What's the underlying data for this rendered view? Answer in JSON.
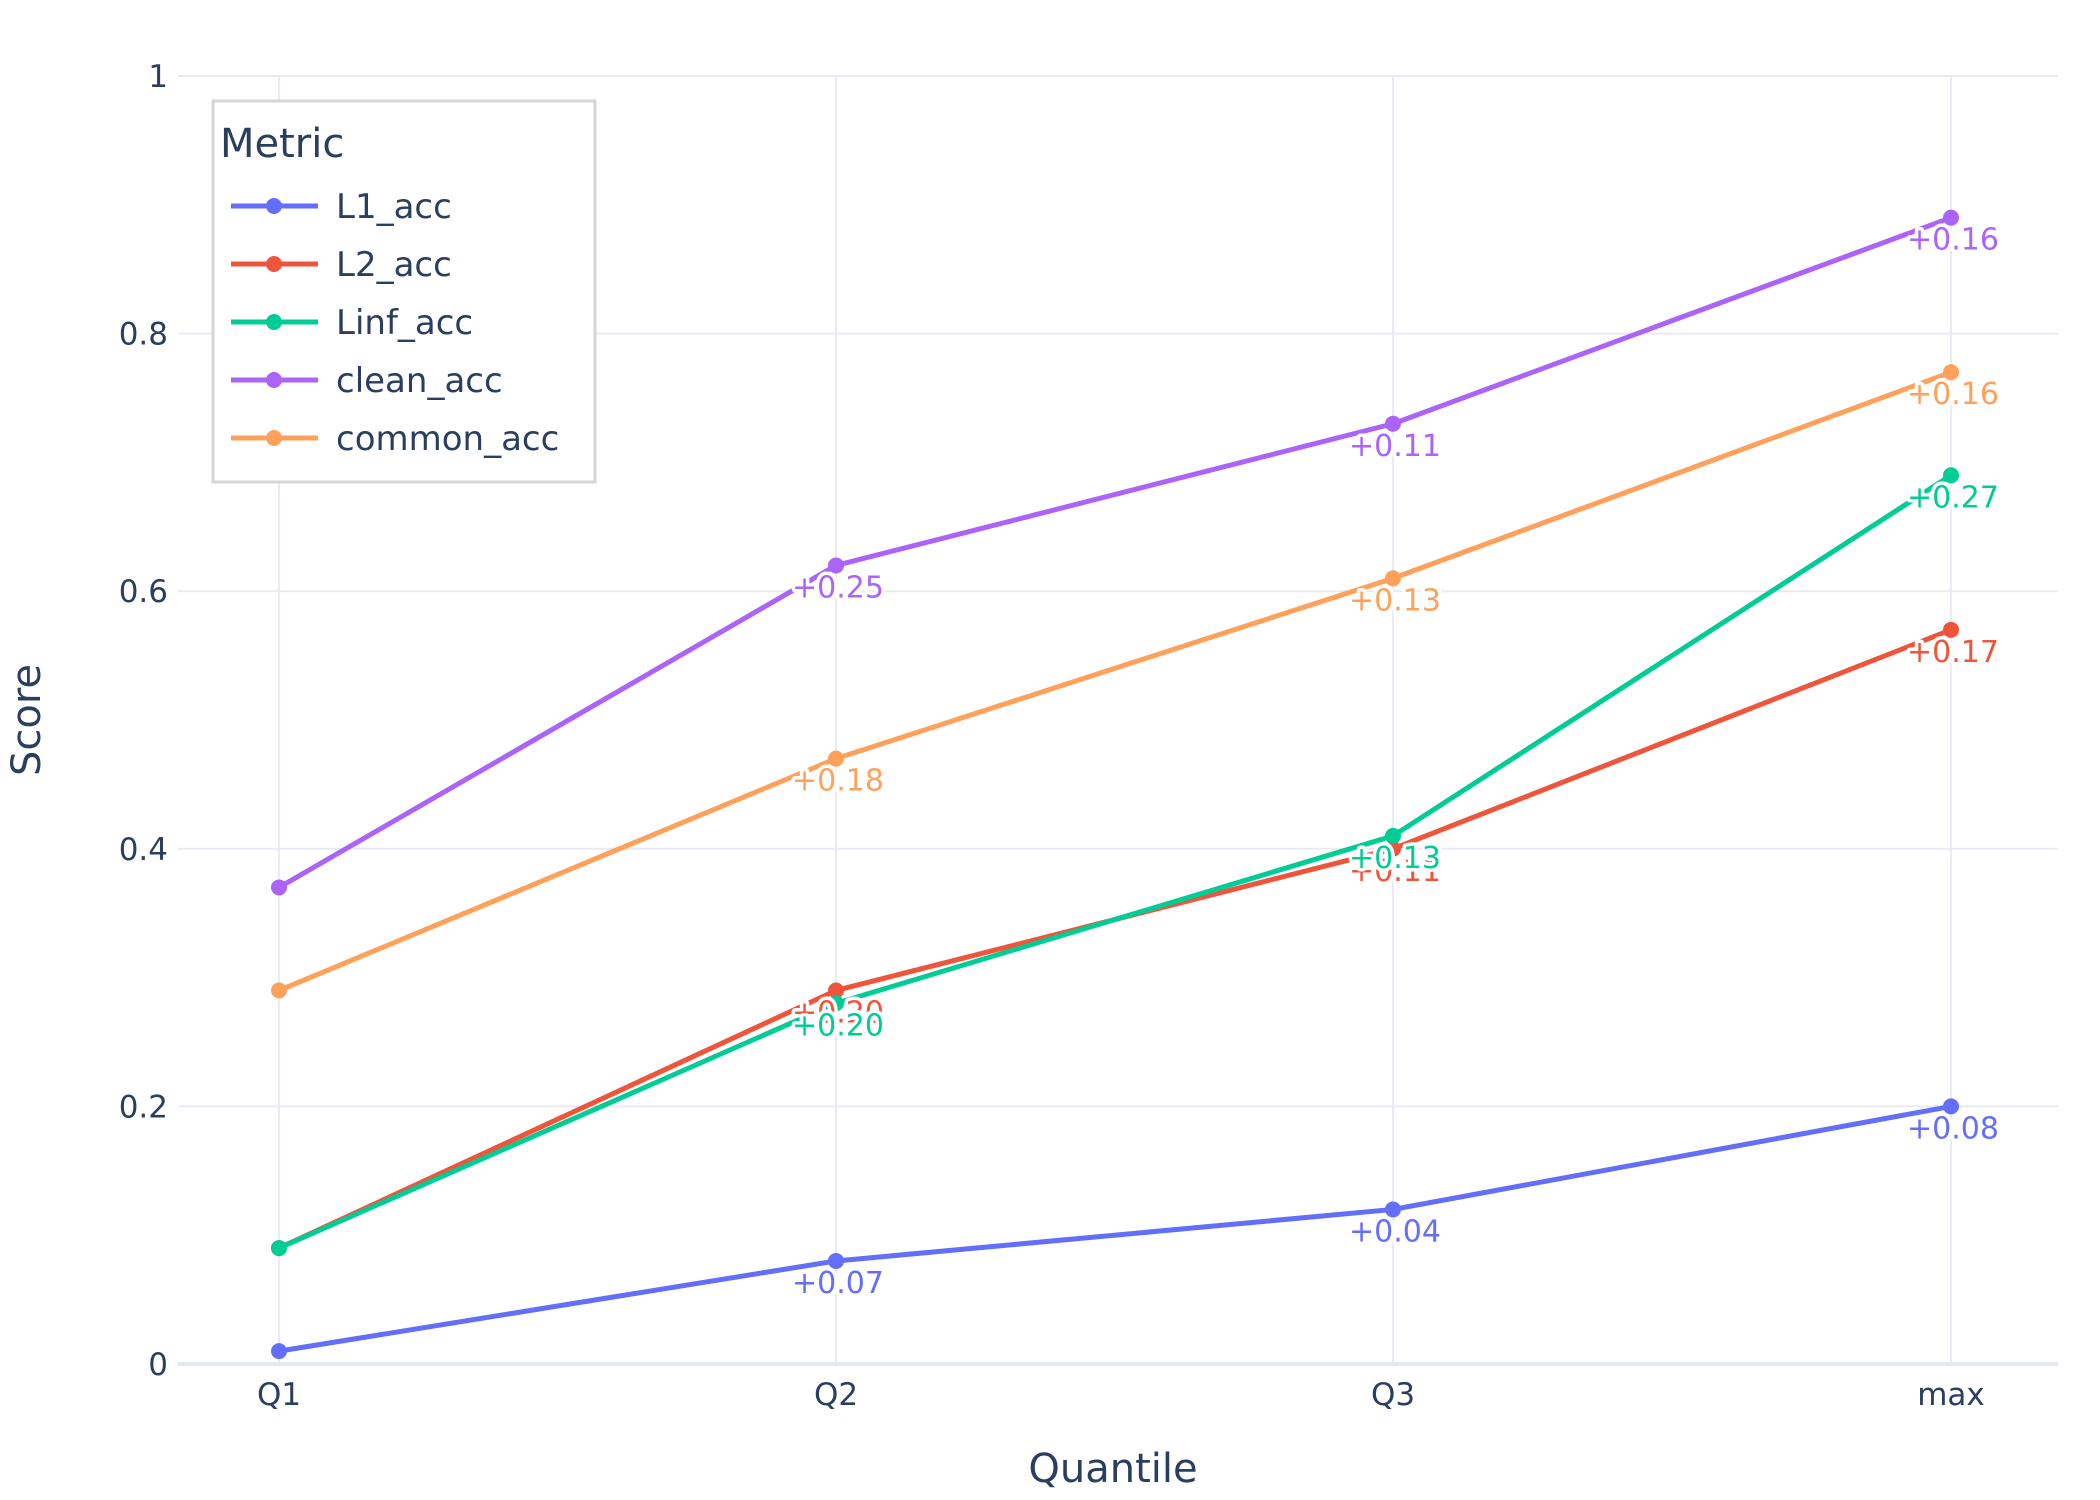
{
  "chart_data": {
    "type": "line",
    "title": "",
    "xlabel": "Quantile",
    "ylabel": "Score",
    "categories": [
      "Q1",
      "Q2",
      "Q3",
      "max"
    ],
    "ylim": [
      0,
      1
    ],
    "yticks": [
      0,
      0.2,
      0.4,
      0.6,
      0.8,
      1
    ],
    "ytick_labels": [
      "0",
      "0.2",
      "0.4",
      "0.6",
      "0.8",
      "1"
    ],
    "grid": true,
    "legend": {
      "title": "Metric",
      "position": "top-left"
    },
    "series": [
      {
        "name": "L1_acc",
        "color": "#636efa",
        "values": [
          0.01,
          0.08,
          0.12,
          0.2
        ],
        "labels": [
          "",
          "+0.07",
          "+0.04",
          "+0.08"
        ]
      },
      {
        "name": "L2_acc",
        "color": "#ef553b",
        "values": [
          0.09,
          0.29,
          0.4,
          0.57
        ],
        "labels": [
          "",
          "+0.20",
          "+0.11",
          "+0.17"
        ]
      },
      {
        "name": "Linf_acc",
        "color": "#00cc96",
        "values": [
          0.09,
          0.28,
          0.41,
          0.69
        ],
        "labels": [
          "",
          "+0.20",
          "+0.13",
          "+0.27"
        ]
      },
      {
        "name": "clean_acc",
        "color": "#ab63fa",
        "values": [
          0.37,
          0.62,
          0.73,
          0.89
        ],
        "labels": [
          "",
          "+0.25",
          "+0.11",
          "+0.16"
        ]
      },
      {
        "name": "common_acc",
        "color": "#ffa15a",
        "values": [
          0.29,
          0.47,
          0.61,
          0.77
        ],
        "labels": [
          "",
          "+0.18",
          "+0.13",
          "+0.16"
        ]
      }
    ]
  }
}
